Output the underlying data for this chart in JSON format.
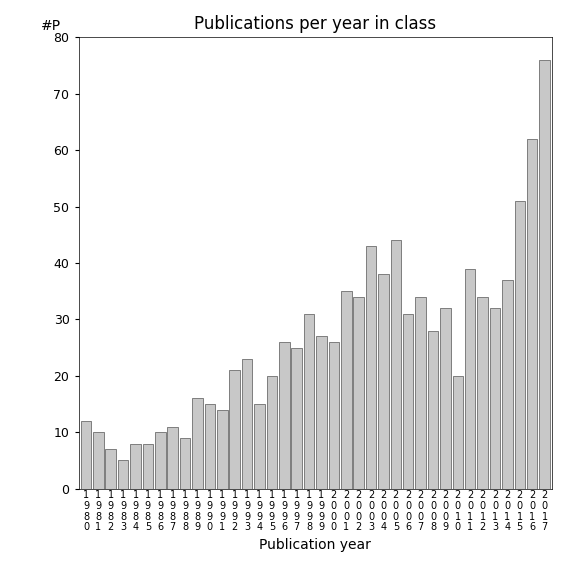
{
  "title": "Publications per year in class",
  "xlabel": "Publication year",
  "ylabel": "#P",
  "years": [
    "1980",
    "1981",
    "1982",
    "1983",
    "1984",
    "1985",
    "1986",
    "1987",
    "1988",
    "1989",
    "1990",
    "1991",
    "1992",
    "1993",
    "1994",
    "1995",
    "1996",
    "1997",
    "1998",
    "1999",
    "2000",
    "2001",
    "2002",
    "2003",
    "2004",
    "2005",
    "2006",
    "2007",
    "2008",
    "2009",
    "2010",
    "2011",
    "2012",
    "2013",
    "2014",
    "2015",
    "2016",
    "2017"
  ],
  "values": [
    12,
    10,
    7,
    5,
    8,
    8,
    10,
    11,
    9,
    16,
    15,
    14,
    21,
    23,
    15,
    20,
    26,
    25,
    31,
    27,
    26,
    35,
    34,
    43,
    38,
    44,
    31,
    34,
    28,
    32,
    20,
    39,
    34,
    32,
    37,
    51,
    62,
    76
  ],
  "bar_color": "#c8c8c8",
  "bar_edgecolor": "#555555",
  "ylim": [
    0,
    80
  ],
  "yticks": [
    0,
    10,
    20,
    30,
    40,
    50,
    60,
    70,
    80
  ],
  "background_color": "#ffffff",
  "title_fontsize": 12,
  "axis_label_fontsize": 10,
  "tick_fontsize": 9
}
